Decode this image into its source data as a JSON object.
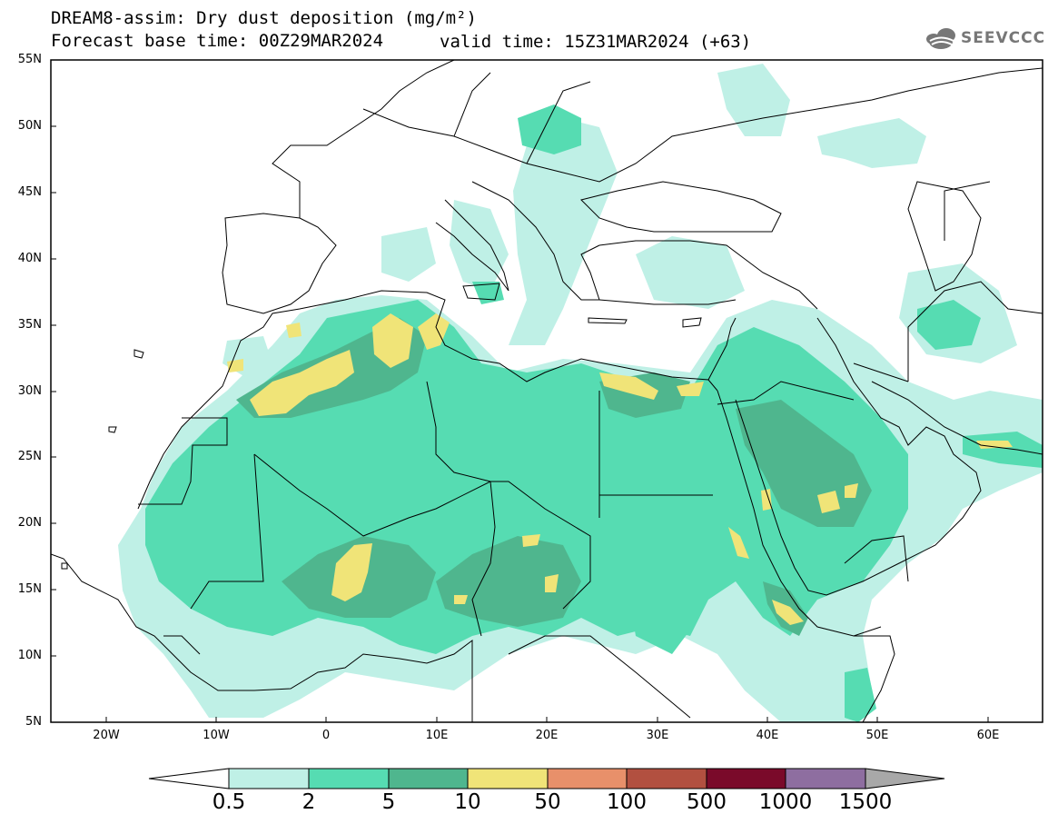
{
  "header": {
    "title": "DREAM8-assim: Dry dust deposition (mg/m²)",
    "base_time": "Forecast base time: 00Z29MAR2024",
    "valid_time": "valid time: 15Z31MAR2024 (+63)",
    "logo_text": "SEEVCCC"
  },
  "map": {
    "lat_labels": [
      "55N",
      "50N",
      "45N",
      "40N",
      "35N",
      "30N",
      "25N",
      "20N",
      "15N",
      "10N",
      "5N"
    ],
    "lon_labels": [
      "20W",
      "10W",
      "0",
      "10E",
      "20E",
      "30E",
      "40E",
      "50E",
      "60E"
    ],
    "lat_range": [
      5,
      55
    ],
    "lon_range": [
      -25,
      65
    ]
  },
  "colorbar": {
    "labels": [
      "0.5",
      "2",
      "5",
      "10",
      "50",
      "100",
      "500",
      "1000",
      "1500"
    ],
    "colors": [
      "#bff0e6",
      "#56dcb2",
      "#4fb68e",
      "#f0e478",
      "#e8906a",
      "#b25040",
      "#7a0a2a",
      "#8e6ea0",
      "#a8a8a8"
    ],
    "under_color": "#ffffff",
    "over_color": "#a8a8a8"
  },
  "palette": {
    "level_0_5": "#bff0e6",
    "level_2": "#56dcb2",
    "level_5": "#4fb68e",
    "level_10": "#f0e478",
    "land_line": "#000000",
    "ocean": "#ffffff"
  }
}
